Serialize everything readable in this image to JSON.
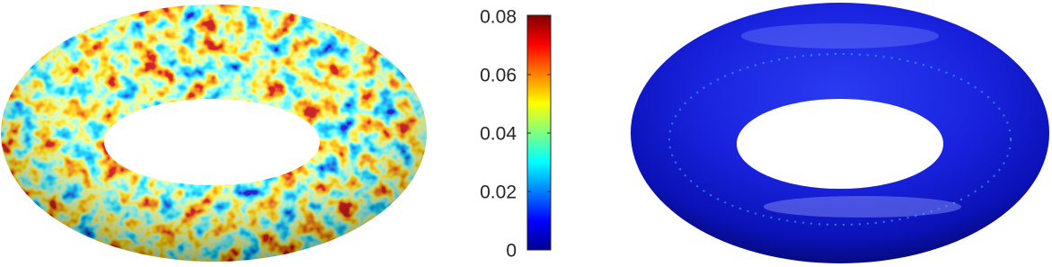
{
  "chart_data": {
    "type": "colorbar",
    "ylim": [
      0,
      0.08
    ],
    "yticks": [
      0,
      0.02,
      0.04,
      0.06,
      0.08
    ]
  }
}
